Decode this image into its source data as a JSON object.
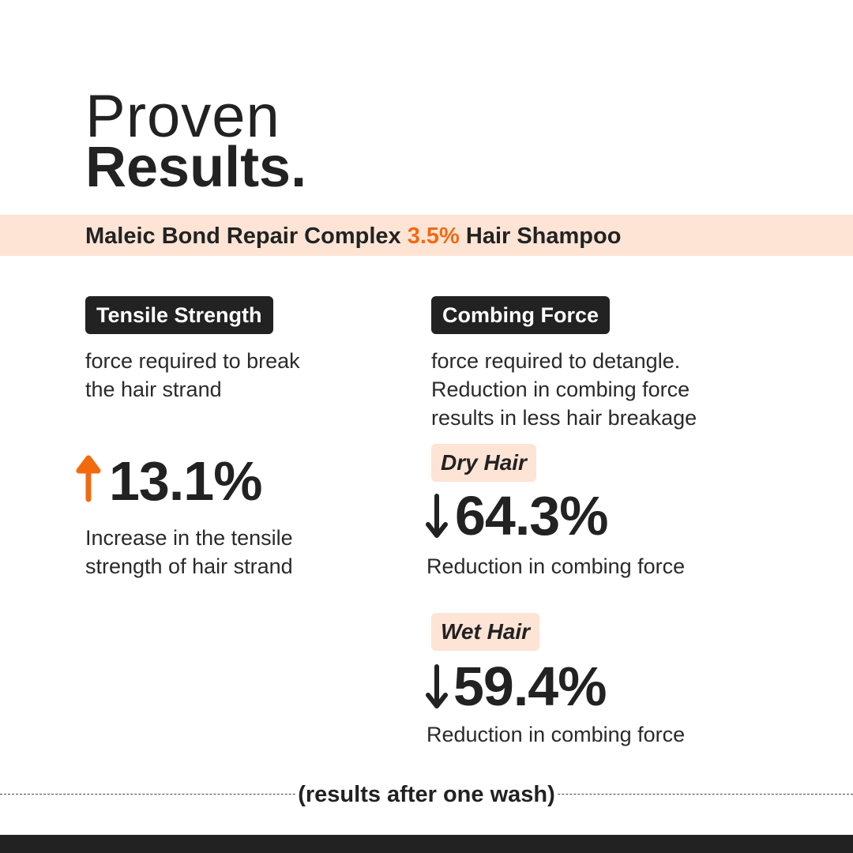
{
  "heading": {
    "line1": "Proven",
    "line2": "Results."
  },
  "product": {
    "prefix": "Maleic Bond Repair Complex ",
    "highlight": "3.5%",
    "suffix": " Hair Shampoo"
  },
  "tensile": {
    "label": "Tensile Strength",
    "desc1": "force required to break",
    "desc2": "the hair strand",
    "direction_icon": "arrow-up-icon",
    "value": "13.1%",
    "result1": "Increase in the tensile",
    "result2": "strength of hair strand"
  },
  "combing": {
    "label": "Combing Force",
    "desc1": "force required to detangle.",
    "desc2": "Reduction in combing force",
    "desc3": "results in less hair breakage",
    "dry": {
      "label": "Dry Hair",
      "direction_icon": "arrow-down-icon",
      "value": "64.3%",
      "result": "Reduction in combing force"
    },
    "wet": {
      "label": "Wet Hair",
      "direction_icon": "arrow-down-icon",
      "value": "59.4%",
      "result": "Reduction in combing force"
    }
  },
  "footer": "(results after one wash)",
  "colors": {
    "accent": "#f26a10",
    "band": "#fde4d5",
    "dark": "#222222"
  }
}
